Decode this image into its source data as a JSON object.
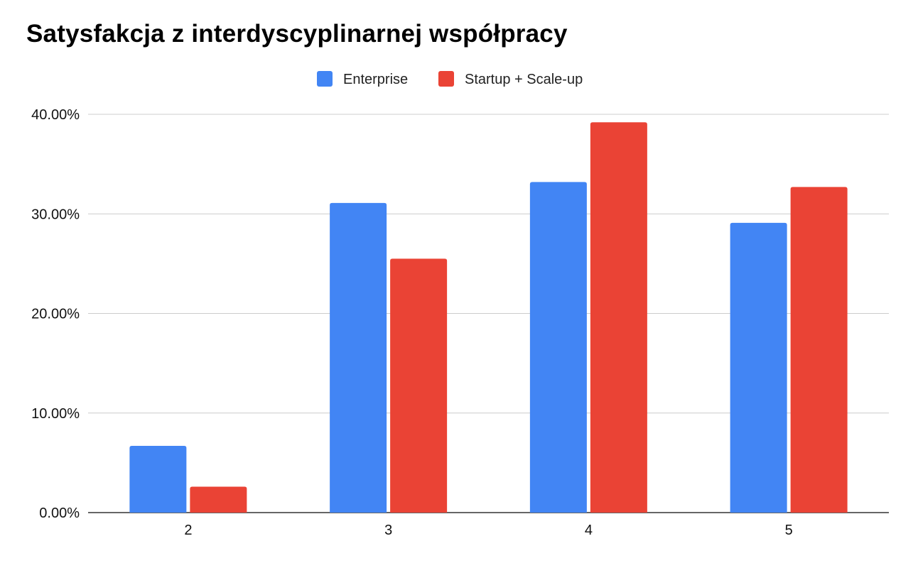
{
  "chart_data": {
    "type": "bar",
    "title": "Satysfakcja z interdyscyplinarnej współpracy",
    "xlabel": "",
    "ylabel": "",
    "categories": [
      "2",
      "3",
      "4",
      "5"
    ],
    "series": [
      {
        "name": "Enterprise",
        "color": "#4285F4",
        "values": [
          6.7,
          31.1,
          33.2,
          29.1
        ]
      },
      {
        "name": "Startup + Scale-up",
        "color": "#EA4335",
        "values": [
          2.6,
          25.5,
          39.2,
          32.7
        ]
      }
    ],
    "ylim": [
      0,
      40
    ],
    "yticks": [
      0,
      10,
      20,
      30,
      40
    ],
    "ytick_labels": [
      "0.00%",
      "10.00%",
      "20.00%",
      "30.00%",
      "40.00%"
    ],
    "grid": true,
    "legend_position": "top-center"
  }
}
